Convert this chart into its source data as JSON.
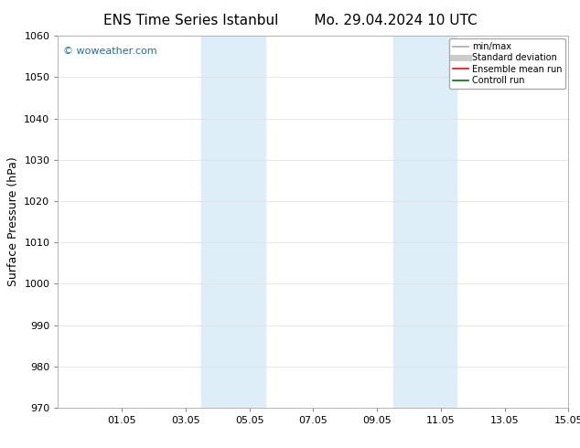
{
  "title_left": "ENS Time Series Istanbul",
  "title_right": "Mo. 29.04.2024 10 UTC",
  "ylabel": "Surface Pressure (hPa)",
  "ylim": [
    970,
    1060
  ],
  "yticks": [
    970,
    980,
    990,
    1000,
    1010,
    1020,
    1030,
    1040,
    1050,
    1060
  ],
  "xlim": [
    0,
    16
  ],
  "xtick_labels": [
    "01.05",
    "03.05",
    "05.05",
    "07.05",
    "09.05",
    "11.05",
    "13.05",
    "15.05"
  ],
  "xtick_positions": [
    2,
    4,
    6,
    8,
    10,
    12,
    14,
    16
  ],
  "shaded_bands": [
    {
      "x_start": 4.5,
      "x_end": 6.5
    },
    {
      "x_start": 10.5,
      "x_end": 12.5
    }
  ],
  "shade_color": "#ddeef8",
  "background_color": "#ffffff",
  "watermark": "© woweather.com",
  "watermark_color": "#1a6faf",
  "legend_items": [
    {
      "label": "min/max",
      "color": "#aaaaaa",
      "lw": 1.2,
      "style": "solid"
    },
    {
      "label": "Standard deviation",
      "color": "#cccccc",
      "lw": 5,
      "style": "solid"
    },
    {
      "label": "Ensemble mean run",
      "color": "#ff0000",
      "lw": 1.2,
      "style": "solid"
    },
    {
      "label": "Controll run",
      "color": "#007000",
      "lw": 1.2,
      "style": "solid"
    }
  ],
  "grid_color": "#dddddd",
  "title_fontsize": 11,
  "axis_label_fontsize": 9,
  "tick_fontsize": 8,
  "watermark_fontsize": 8,
  "legend_fontsize": 7
}
